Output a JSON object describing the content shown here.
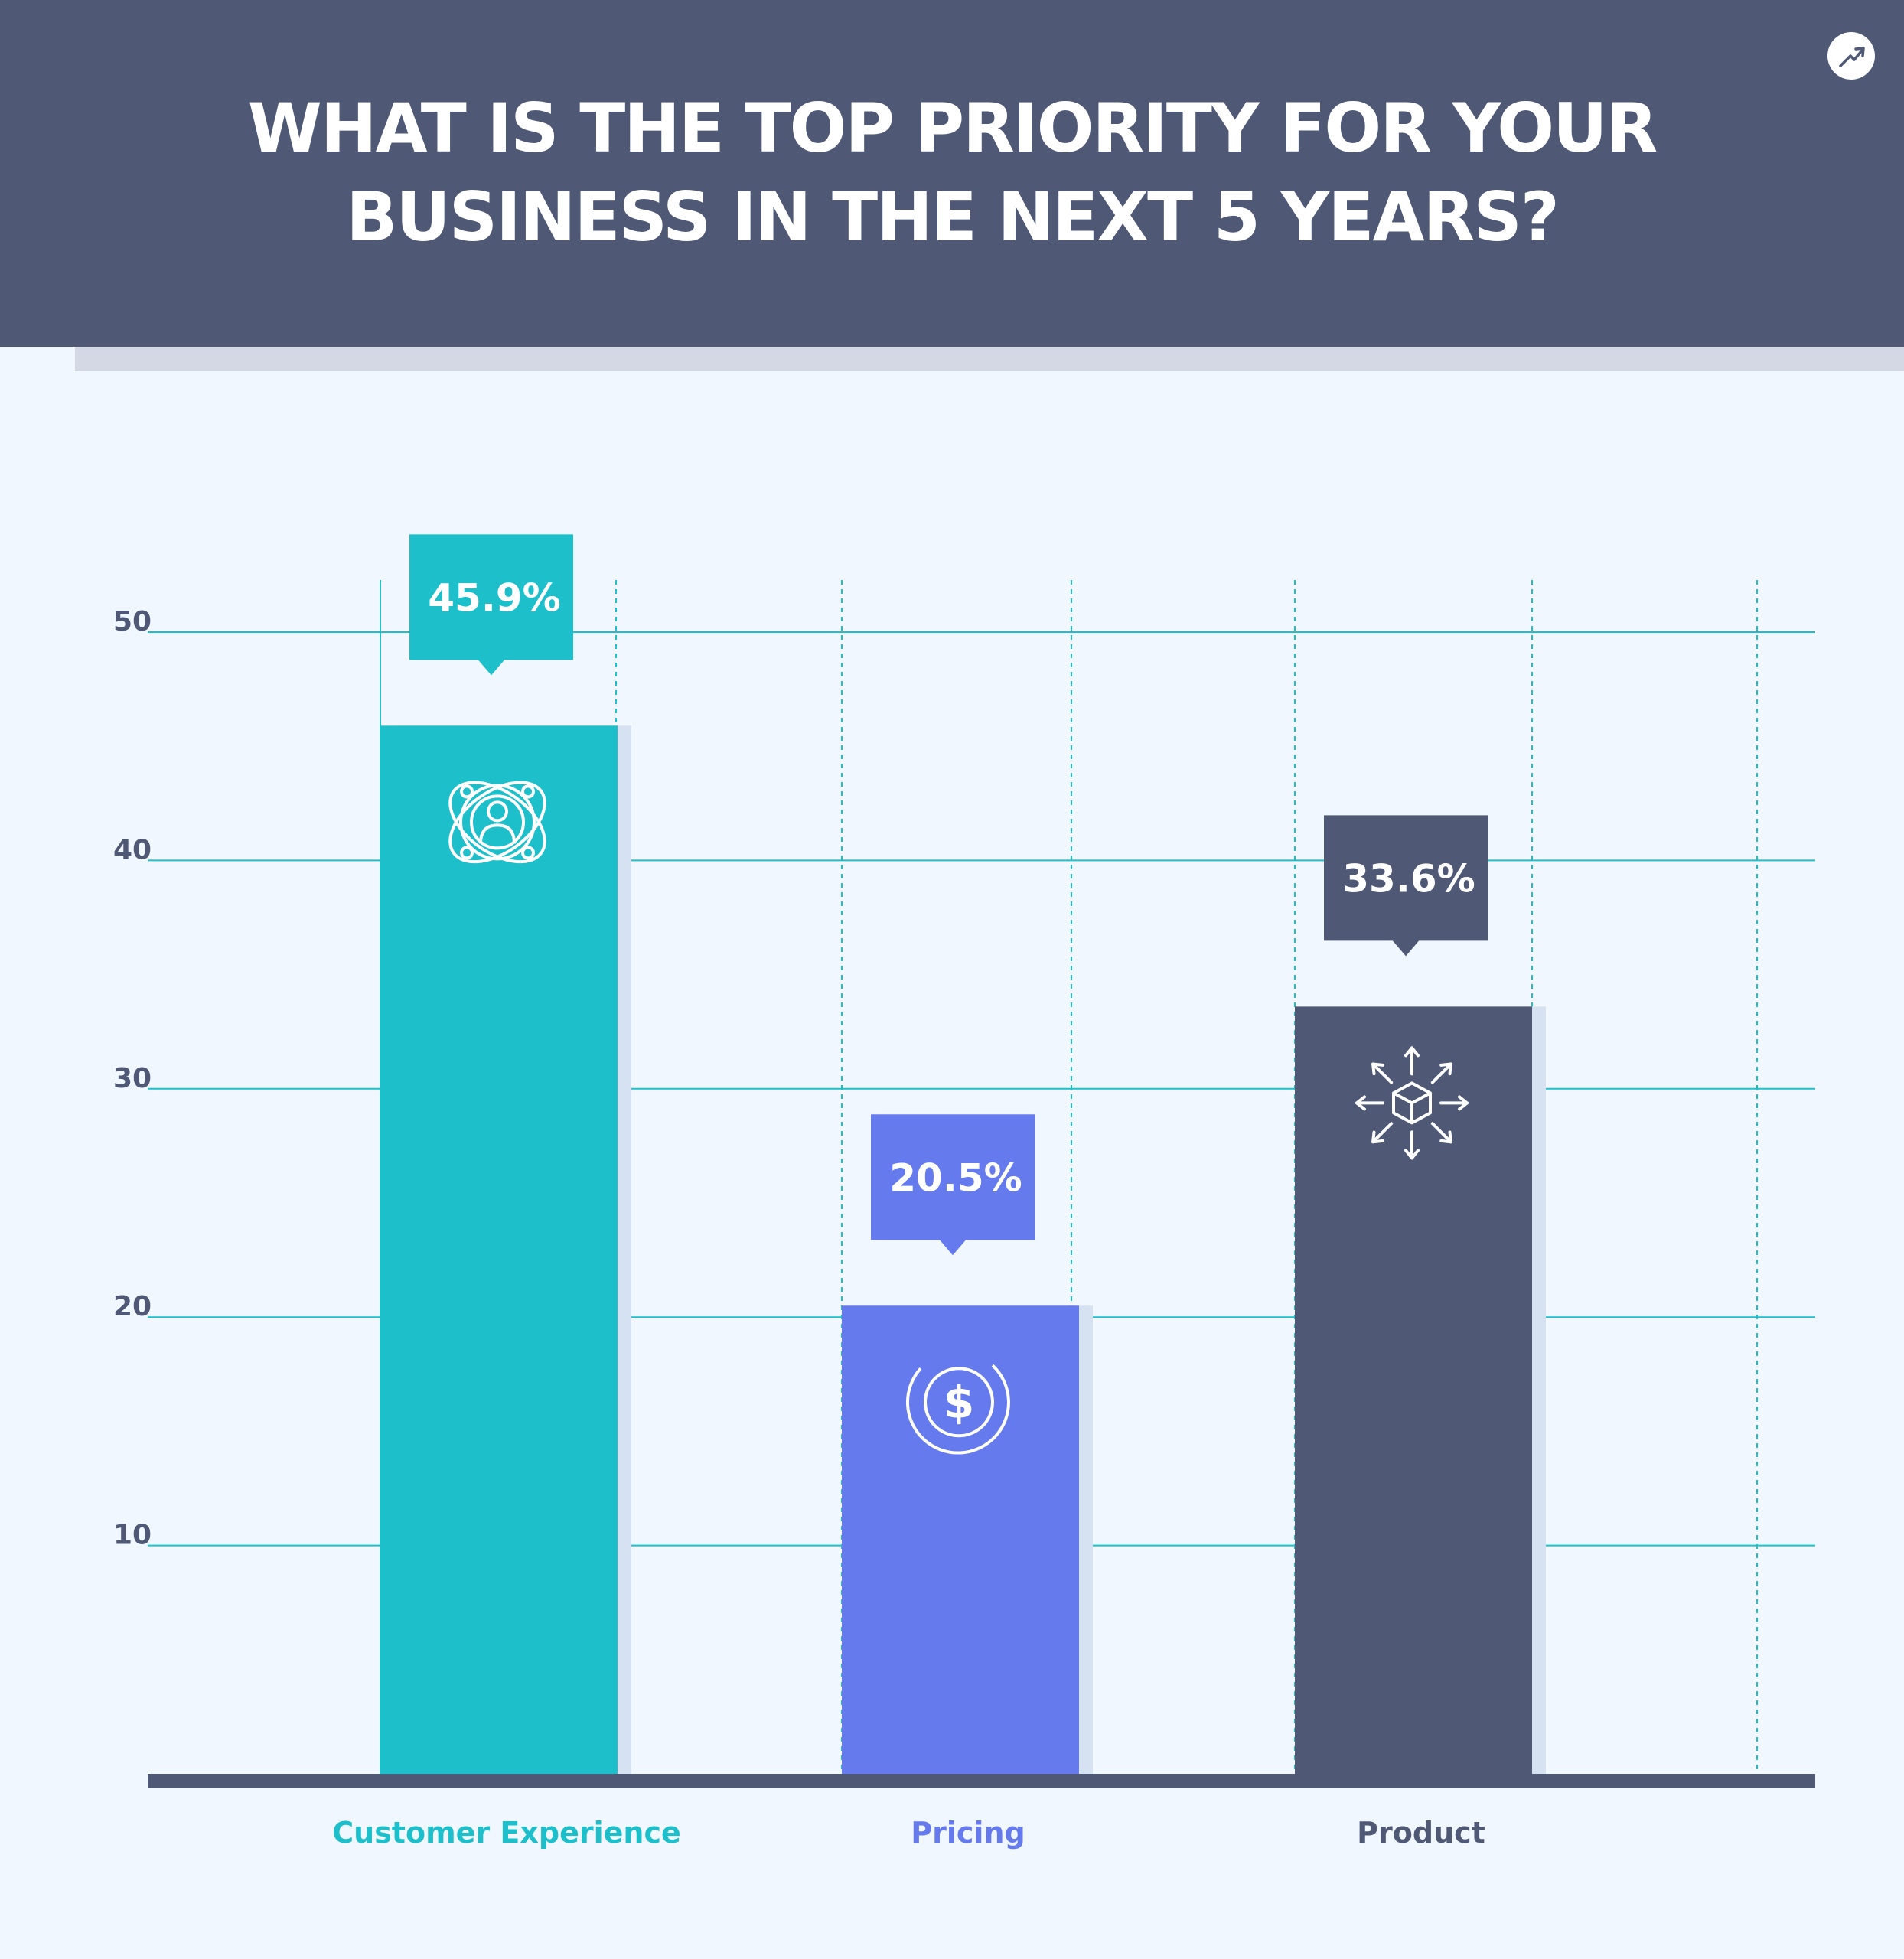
{
  "header": {
    "title": "WHAT IS THE TOP PRIORITY FOR YOUR BUSINESS IN THE NEXT 5 YEARS?",
    "logo_icon": "trend-arrow-icon"
  },
  "colors": {
    "background": "#f1f7fe",
    "header": "#4f5975",
    "customer_experience": "#1dbfcb",
    "pricing": "#657aec",
    "product": "#4f5975",
    "gridline": "#1dbfcb"
  },
  "chart_data": {
    "type": "bar",
    "title": "WHAT IS THE TOP PRIORITY FOR YOUR BUSINESS IN THE NEXT 5 YEARS?",
    "categories": [
      "Customer Experience",
      "Pricing",
      "Product"
    ],
    "values": [
      45.9,
      20.5,
      33.6
    ],
    "value_labels": [
      "45.9%",
      "20.5%",
      "33.6%"
    ],
    "colors": [
      "#1dbfcb",
      "#657aec",
      "#4f5975"
    ],
    "icons": [
      "customer-network-icon",
      "dollar-coin-icon",
      "product-box-icon"
    ],
    "yticks": [
      10,
      20,
      30,
      40,
      50
    ],
    "ytick_labels": [
      "10",
      "20",
      "30",
      "40",
      "50"
    ],
    "ylim": [
      0,
      50
    ],
    "grid": true,
    "xlabel": "",
    "ylabel": ""
  }
}
